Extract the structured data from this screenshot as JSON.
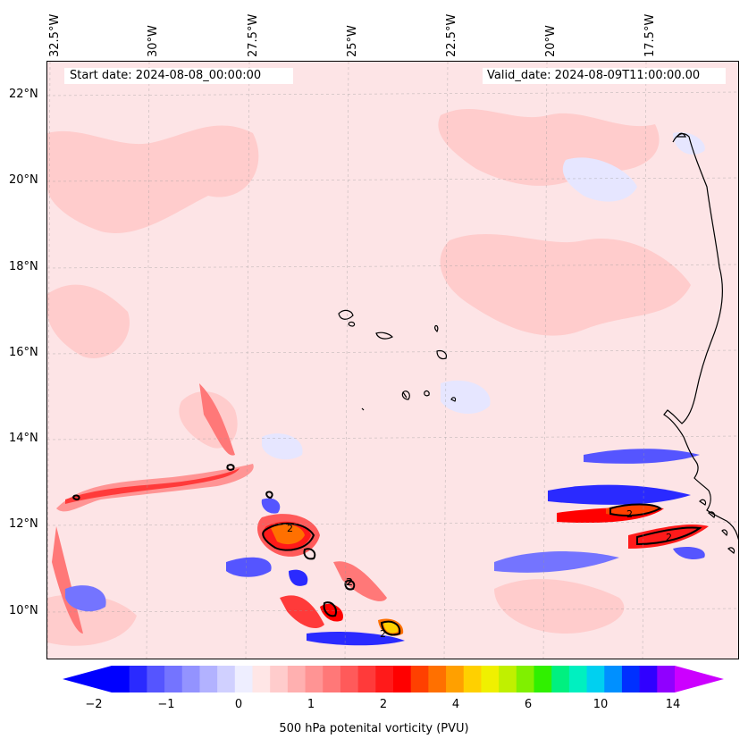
{
  "start_date_label": "Start date: 2024-08-08_00:00:00",
  "valid_date_label": "Valid_date: 2024-08-09T11:00:00.00",
  "lon_labels": [
    "32.5°W",
    "30°W",
    "27.5°W",
    "25°W",
    "22.5°W",
    "20°W",
    "17.5°W"
  ],
  "lat_labels": [
    "22°N",
    "20°N",
    "18°N",
    "16°N",
    "14°N",
    "12°N",
    "10°N"
  ],
  "colorbar": {
    "label": "500 hPa potenital vorticity (PVU)",
    "ticks": [
      "−2",
      "−1",
      "0",
      "1",
      "2",
      "4",
      "6",
      "10",
      "14"
    ],
    "colors": [
      "#0000ff",
      "#2a2aff",
      "#5555ff",
      "#7474ff",
      "#9393ff",
      "#b2b2ff",
      "#d0d0ff",
      "#eeeeff",
      "#ffe6e6",
      "#ffcccc",
      "#ffb0b0",
      "#ff9494",
      "#ff7878",
      "#ff5a5a",
      "#ff3a3a",
      "#ff1a1a",
      "#ff0000",
      "#ff4000",
      "#ff7000",
      "#ffa000",
      "#ffd000",
      "#f0f000",
      "#c0f000",
      "#80f000",
      "#30f000",
      "#00f080",
      "#00f0c0",
      "#00d0f0",
      "#0090ff",
      "#0030ff",
      "#3000ff",
      "#9000ff"
    ],
    "under_color": "#0000ff",
    "over_color": "#cc00ff"
  },
  "contour_label": "2"
}
